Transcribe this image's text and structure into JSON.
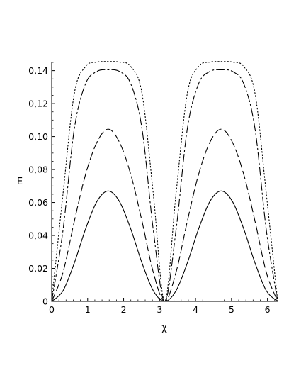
{
  "chart_data": {
    "type": "line",
    "title": "",
    "xlabel": "χ",
    "ylabel": "E",
    "xlim": [
      0,
      6.283
    ],
    "ylim": [
      0,
      0.145
    ],
    "x_ticks": [
      0,
      1,
      2,
      3,
      4,
      5,
      6
    ],
    "x_tick_labels": [
      "0",
      "1",
      "2",
      "3",
      "4",
      "5",
      "6"
    ],
    "y_ticks": [
      0,
      0.02,
      0.04,
      0.06,
      0.08,
      0.1,
      0.12,
      0.14
    ],
    "y_tick_labels": [
      "0",
      "0,02",
      "0,04",
      "0,06",
      "0,08",
      "0,10",
      "0,12",
      "0,14"
    ],
    "grid": false,
    "legend": "none",
    "series": [
      {
        "style": "solid",
        "x": [
          0,
          0.314,
          0.628,
          0.942,
          1.257,
          1.571,
          1.885,
          2.199,
          2.513,
          2.827,
          3.142,
          3.456,
          3.77,
          4.084,
          4.398,
          4.712,
          5.027,
          5.341,
          5.655,
          5.969,
          6.283
        ],
        "y": [
          0,
          0.0064,
          0.0232,
          0.0439,
          0.0606,
          0.067,
          0.0606,
          0.0439,
          0.0232,
          0.0064,
          0,
          0.0064,
          0.0232,
          0.0439,
          0.0606,
          0.067,
          0.0606,
          0.0439,
          0.0232,
          0.0064,
          0
        ]
      },
      {
        "style": "dashed",
        "x": [
          0,
          0.314,
          0.628,
          0.942,
          1.257,
          1.571,
          1.885,
          2.199,
          2.513,
          2.827,
          3.142,
          3.456,
          3.77,
          4.084,
          4.398,
          4.712,
          5.027,
          5.341,
          5.655,
          5.969,
          6.283
        ],
        "y": [
          0,
          0.0175,
          0.0485,
          0.077,
          0.0965,
          0.1045,
          0.0965,
          0.077,
          0.0485,
          0.0175,
          0,
          0.0175,
          0.0485,
          0.077,
          0.0965,
          0.1045,
          0.0965,
          0.077,
          0.0485,
          0.0175,
          0
        ]
      },
      {
        "style": "dashdot",
        "x": [
          0,
          0.314,
          0.628,
          0.942,
          1.257,
          1.571,
          1.885,
          2.199,
          2.513,
          2.827,
          3.142,
          3.456,
          3.77,
          4.084,
          4.398,
          4.712,
          5.027,
          5.341,
          5.655,
          5.969,
          6.283
        ],
        "y": [
          0,
          0.043,
          0.1045,
          0.132,
          0.1395,
          0.1405,
          0.1395,
          0.132,
          0.1045,
          0.043,
          0,
          0.043,
          0.1045,
          0.132,
          0.1395,
          0.1405,
          0.1395,
          0.132,
          0.1045,
          0.043,
          0
        ]
      },
      {
        "style": "dotted",
        "x": [
          0,
          0.314,
          0.628,
          0.942,
          1.257,
          1.571,
          1.885,
          2.199,
          2.513,
          2.827,
          3.142,
          3.456,
          3.77,
          4.084,
          4.398,
          4.712,
          5.027,
          5.341,
          5.655,
          5.969,
          6.283
        ],
        "y": [
          0,
          0.065,
          0.126,
          0.1425,
          0.1452,
          0.1455,
          0.1452,
          0.1425,
          0.126,
          0.065,
          0,
          0.065,
          0.126,
          0.1425,
          0.1452,
          0.1455,
          0.1452,
          0.1425,
          0.126,
          0.065,
          0
        ]
      }
    ]
  }
}
